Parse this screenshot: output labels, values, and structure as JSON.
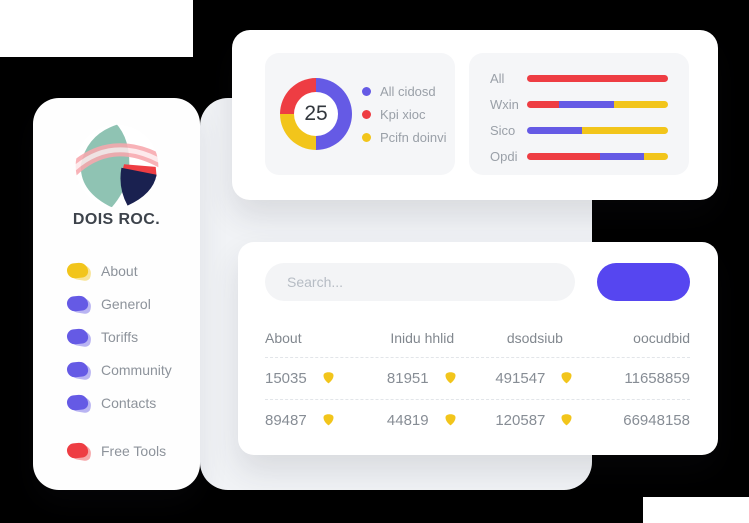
{
  "colors": {
    "chart_blue": "#655ae5",
    "chart_red": "#ee3d43",
    "chart_yellow": "#f2c51b",
    "button_blue": "#5646f0",
    "badge_yellow": "#f2c51b",
    "text_dark": "#3d434b",
    "text_gray": "#878d95"
  },
  "sidebar": {
    "brand": "DOIS ROC.",
    "items": [
      {
        "label": "About",
        "color": "#f2c51b",
        "group": "main"
      },
      {
        "label": "Generol",
        "color": "#655ae5",
        "group": "main"
      },
      {
        "label": "Toriffs",
        "color": "#655ae5",
        "group": "main"
      },
      {
        "label": "Community",
        "color": "#655ae5",
        "group": "main"
      },
      {
        "label": "Contacts",
        "color": "#655ae5",
        "group": "main"
      },
      {
        "label": "Free Tools",
        "color": "#ee3d43",
        "group": "footer"
      }
    ]
  },
  "chart_data": [
    {
      "type": "pie",
      "subtype": "donut",
      "center_label": "25",
      "segments_clockwise_from_top": [
        {
          "color": "#655ae5",
          "pct": 50
        },
        {
          "color": "#f2c51b",
          "pct": 25
        },
        {
          "color": "#ee3d43",
          "pct": 25
        }
      ],
      "legend_position": "right",
      "slices": [
        {
          "label": "All cidosd",
          "value": 50,
          "color": "#655ae5"
        },
        {
          "label": "Kpi xioc",
          "value": 25,
          "color": "#ee3d43"
        },
        {
          "label": "Pcifn doinvi",
          "value": 25,
          "color": "#f2c51b"
        }
      ]
    },
    {
      "type": "bar",
      "orientation": "horizontal",
      "stacked": true,
      "categories": [
        "All",
        "Wxin",
        "Sico",
        "Opdi"
      ],
      "rows": [
        {
          "label": "All",
          "segments": [
            {
              "color": "#ee3d43",
              "pct": 100
            }
          ]
        },
        {
          "label": "Wxin",
          "segments": [
            {
              "color": "#ee3d43",
              "pct": 23
            },
            {
              "color": "#655ae5",
              "pct": 39
            },
            {
              "color": "#f2c51b",
              "pct": 38
            }
          ]
        },
        {
          "label": "Sico",
          "segments": [
            {
              "color": "#655ae5",
              "pct": 39
            },
            {
              "color": "#f2c51b",
              "pct": 61
            }
          ]
        },
        {
          "label": "Opdi",
          "segments": [
            {
              "color": "#ee3d43",
              "pct": 52
            },
            {
              "color": "#655ae5",
              "pct": 31
            },
            {
              "color": "#f2c51b",
              "pct": 17
            }
          ]
        }
      ]
    }
  ],
  "table_card": {
    "search_placeholder": "Search...",
    "button_label": "",
    "headers": [
      "About",
      "Inidu hhlid",
      "dsodsiub",
      "oocudbid"
    ],
    "rows": [
      {
        "cells": [
          {
            "value": "15035",
            "badge": true
          },
          {
            "value": "81951",
            "badge": true
          },
          {
            "value": "491547",
            "badge": true
          },
          {
            "value": "11658859",
            "badge": false
          }
        ]
      },
      {
        "cells": [
          {
            "value": "89487",
            "badge": true
          },
          {
            "value": "44819",
            "badge": true
          },
          {
            "value": "120587",
            "badge": true
          },
          {
            "value": "66948158",
            "badge": false
          }
        ]
      }
    ],
    "badge_icon": "shield-icon",
    "badge_color": "#f2c51b"
  }
}
